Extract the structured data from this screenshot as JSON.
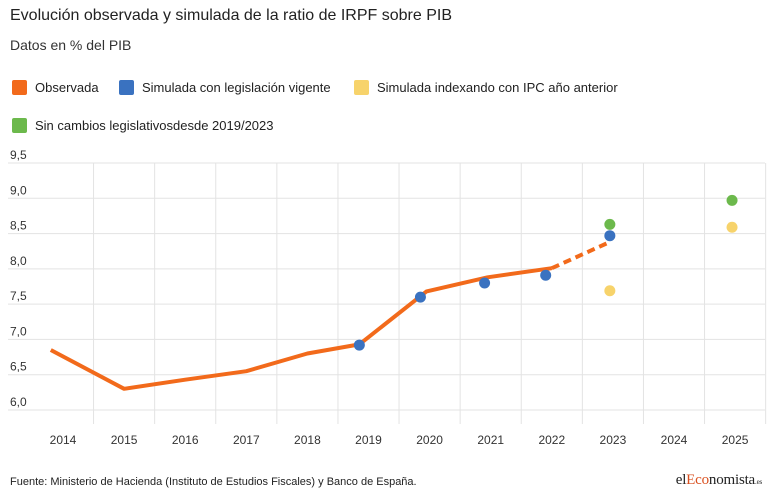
{
  "header": {
    "title": "Evolución observada y simulada de la ratio de IRPF sobre PIB",
    "subtitle": "Datos en % del PIB"
  },
  "legend": [
    {
      "label": "Observada",
      "color": "#f26a1b"
    },
    {
      "label": "Simulada con legislación vigente",
      "color": "#3a72c0"
    },
    {
      "label": "Simulada indexando con IPC año anterior",
      "color": "#f7d36b"
    },
    {
      "label": "Sin cambios legislativosdesde 2019/2023",
      "color": "#6cb94c"
    }
  ],
  "footer": {
    "source": "Fuente: Ministerio de Hacienda (Instituto de Estudios Fiscales) y Banco de España.",
    "logo_pre": "el",
    "logo_accent": "Eco",
    "logo_post": "nomista",
    "logo_suffix": ".es"
  },
  "chart_data": {
    "type": "line",
    "ylim": [
      6.0,
      9.5
    ],
    "yticks": [
      "9,5",
      "9,0",
      "8,5",
      "8,0",
      "7,5",
      "7,0",
      "6,5",
      "6,0"
    ],
    "ytick_values": [
      9.5,
      9.0,
      8.5,
      8.0,
      7.5,
      7.0,
      6.5,
      6.0
    ],
    "categories": [
      "2014",
      "2015",
      "2016",
      "2017",
      "2018",
      "2019",
      "2020",
      "2021",
      "2022",
      "2023",
      "2024",
      "2025"
    ],
    "grid": true,
    "series": [
      {
        "name": "Observada",
        "style": "line",
        "color": "#f26a1b",
        "x": [
          2013.8,
          2015,
          2016,
          2017,
          2018,
          2018.85,
          2019.95,
          2020.95,
          2022
        ],
        "values": [
          6.85,
          6.3,
          6.43,
          6.55,
          6.8,
          6.93,
          7.68,
          7.88,
          8.01
        ]
      },
      {
        "name": "Observada",
        "style": "dashed",
        "color": "#f26a1b",
        "x": [
          2022,
          2022.95
        ],
        "values": [
          8.01,
          8.38
        ]
      },
      {
        "name": "Simulada con legislación vigente",
        "style": "scatter",
        "color": "#3a72c0",
        "x": [
          2018.85,
          2019.85,
          2020.9,
          2021.9,
          2022.95
        ],
        "values": [
          6.92,
          7.6,
          7.8,
          7.91,
          8.47
        ]
      },
      {
        "name": "Simulada indexando con IPC año anterior",
        "style": "scatter",
        "color": "#f7d36b",
        "x": [
          2022.95,
          2024.95
        ],
        "values": [
          7.69,
          8.59
        ]
      },
      {
        "name": "Sin cambios legislativosdesde 2019/2023",
        "style": "scatter",
        "color": "#6cb94c",
        "x": [
          2022.95,
          2024.95
        ],
        "values": [
          8.63,
          8.97
        ]
      }
    ]
  }
}
